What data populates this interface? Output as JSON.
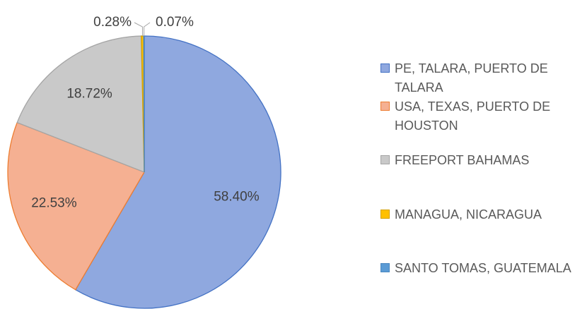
{
  "chart_data": {
    "type": "pie",
    "categories": [
      "PE, TALARA, PUERTO DE TALARA",
      "USA, TEXAS, PUERTO DE HOUSTON",
      "FREEPORT BAHAMAS",
      "MANAGUA, NICARAGUA",
      "SANTO TOMAS, GUATEMALA"
    ],
    "values": [
      58.4,
      22.53,
      18.72,
      0.28,
      0.07
    ],
    "value_labels": [
      "58.40%",
      "22.53%",
      "18.72%",
      "0.28%",
      "0.07%"
    ],
    "colors": [
      "#8fa8df",
      "#f5b092",
      "#c9c9c9",
      "#ffc000",
      "#5b9bd5"
    ],
    "legend": "right"
  }
}
